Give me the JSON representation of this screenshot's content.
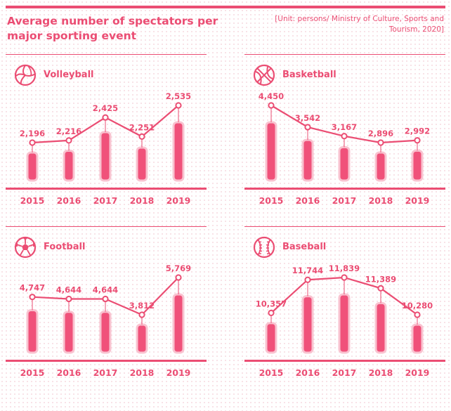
{
  "title": "Average number of spectators per major sporting event",
  "source": "[Unit: persons/ Ministry of Culture, Sports and Tourism, 2020]",
  "colors": {
    "accent": "#eb4d73",
    "bar": "#f0517a",
    "bar_outline": "#f9c3d0",
    "background_dots": "#f7dde3"
  },
  "chart_data": [
    {
      "type": "bar",
      "title": "Volleyball",
      "icon": "volleyball-icon",
      "categories": [
        "2015",
        "2016",
        "2017",
        "2018",
        "2019"
      ],
      "values": [
        2196,
        2216,
        2425,
        2251,
        2535
      ],
      "value_labels": [
        "2,196",
        "2,216",
        "2,425",
        "2,251",
        "2,535"
      ]
    },
    {
      "type": "bar",
      "title": "Basketball",
      "icon": "basketball-icon",
      "categories": [
        "2015",
        "2016",
        "2017",
        "2018",
        "2019"
      ],
      "values": [
        4450,
        3542,
        3167,
        2896,
        2992
      ],
      "value_labels": [
        "4,450",
        "3,542",
        "3,167",
        "2,896",
        "2,992"
      ]
    },
    {
      "type": "bar",
      "title": "Football",
      "icon": "football-icon",
      "categories": [
        "2015",
        "2016",
        "2017",
        "2018",
        "2019"
      ],
      "values": [
        4747,
        4644,
        4644,
        3812,
        5769
      ],
      "value_labels": [
        "4,747",
        "4,644",
        "4,644",
        "3,812",
        "5,769"
      ]
    },
    {
      "type": "bar",
      "title": "Baseball",
      "icon": "baseball-icon",
      "categories": [
        "2015",
        "2016",
        "2017",
        "2018",
        "2019"
      ],
      "values": [
        10357,
        11744,
        11839,
        11389,
        10280
      ],
      "value_labels": [
        "10,357",
        "11,744",
        "11,839",
        "11,389",
        "10,280"
      ]
    }
  ]
}
